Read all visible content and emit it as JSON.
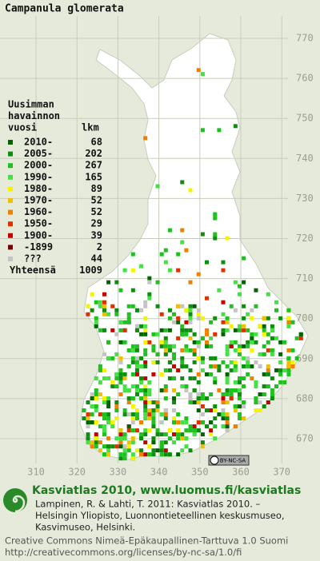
{
  "title": "Campanula glomerata",
  "legend": {
    "heading": [
      "Uusimman",
      "havainnon",
      "vuosi"
    ],
    "count_heading": "lkm",
    "entries": [
      {
        "label": "2010-",
        "count": 68,
        "color": "#006400"
      },
      {
        "label": "2005-",
        "count": 202,
        "color": "#0e8e0e"
      },
      {
        "label": "2000-",
        "count": 267,
        "color": "#1ec21e"
      },
      {
        "label": "1990-",
        "count": 165,
        "color": "#44e044"
      },
      {
        "label": "1980-",
        "count": 89,
        "color": "#f4f400"
      },
      {
        "label": "1970-",
        "count": 52,
        "color": "#f0c000"
      },
      {
        "label": "1960-",
        "count": 52,
        "color": "#f08000"
      },
      {
        "label": "1950-",
        "count": 29,
        "color": "#e03000"
      },
      {
        "label": "1900-",
        "count": 39,
        "color": "#c80000"
      },
      {
        "label": "-1899",
        "count": 2,
        "color": "#7a0000"
      },
      {
        "label": "???",
        "count": 44,
        "color": "#c4c4c4"
      }
    ],
    "total_label": "Yhteensä",
    "total": 1009
  },
  "grid": {
    "y_labels": [
      770,
      760,
      750,
      740,
      730,
      720,
      710,
      700,
      690,
      680,
      670
    ],
    "x_labels": [
      310,
      320,
      330,
      340,
      350,
      360,
      370
    ]
  },
  "license_badge": "BY-NC-SA",
  "footer": {
    "heading": "Kasviatlas 2010, www.luomus.fi/kasviatlas",
    "citation": [
      "Lampinen, R. & Lahti, T. 2011: Kasviatlas 2010. –",
      "Helsingin Yliopisto, Luonnontieteellinen keskusmuseo,",
      "Kasvimuseo, Helsinki."
    ],
    "license": [
      "Creative Commons Nimeä-Epäkaupallinen-Tarttuva 1.0 Suomi",
      "http://creativecommons.org/licenses/by-nc-sa/1.0/fi"
    ]
  }
}
